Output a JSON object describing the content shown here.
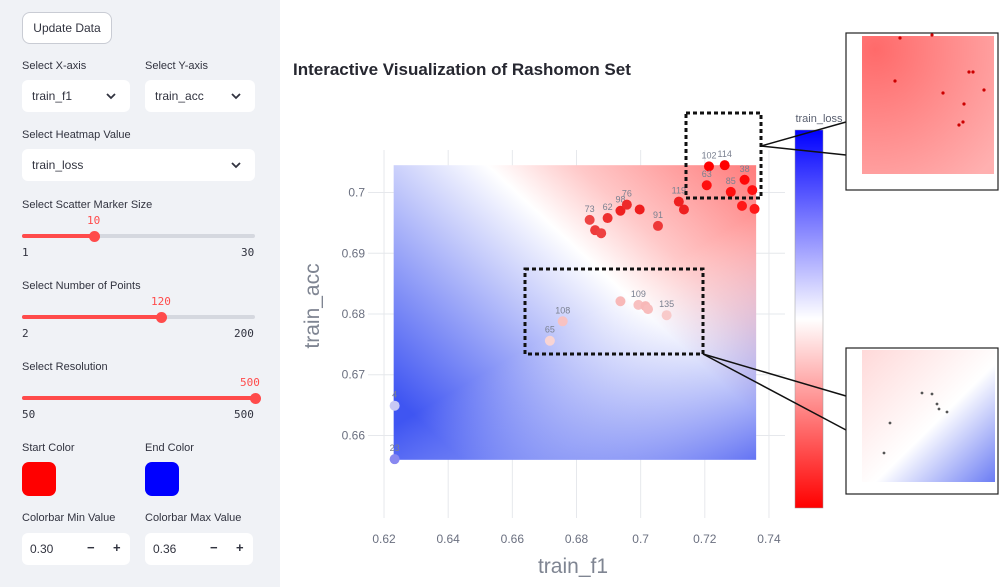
{
  "sidebar": {
    "update_button": "Update Data",
    "x_axis": {
      "label": "Select X-axis",
      "value": "train_f1"
    },
    "y_axis": {
      "label": "Select Y-axis",
      "value": "train_acc"
    },
    "heatmap": {
      "label": "Select Heatmap Value",
      "value": "train_loss"
    },
    "marker_size": {
      "label": "Select Scatter Marker Size",
      "value": 10,
      "min": 1,
      "max": 30
    },
    "num_points": {
      "label": "Select Number of Points",
      "value": 120,
      "min": 2,
      "max": 200
    },
    "resolution": {
      "label": "Select Resolution",
      "value": 500,
      "min": 50,
      "max": 500
    },
    "start_color": {
      "label": "Start Color",
      "value": "#ff0000"
    },
    "end_color": {
      "label": "End Color",
      "value": "#0000ff"
    },
    "cbar_min": {
      "label": "Colorbar Min Value",
      "value": "0.30"
    },
    "cbar_max": {
      "label": "Colorbar Max Value",
      "value": "0.36"
    },
    "minus": "−",
    "plus": "+"
  },
  "main": {
    "title": "Interactive Visualization of Rashomon Set"
  },
  "chart_data": {
    "type": "scatter",
    "title": "Interactive Visualization of Rashomon Set",
    "xlabel": "train_f1",
    "ylabel": "train_acc",
    "colorbar_label": "train_loss",
    "xlim": [
      0.615,
      0.745
    ],
    "ylim": [
      0.653,
      0.707
    ],
    "xticks": [
      0.62,
      0.64,
      0.66,
      0.68,
      0.7,
      0.72,
      0.74
    ],
    "yticks": [
      0.66,
      0.67,
      0.68,
      0.69,
      0.7
    ],
    "xtick_labels": [
      "0.62",
      "0.64",
      "0.66",
      "0.68",
      "0.7",
      "0.72",
      "0.74"
    ],
    "ytick_labels": [
      "0.66",
      "0.67",
      "0.68",
      "0.69",
      "0.7"
    ],
    "heatmap_extent": {
      "x": [
        0.623,
        0.736
      ],
      "y": [
        0.656,
        0.7045
      ]
    },
    "points": [
      {
        "label": "4",
        "x": 0.6233,
        "y": 0.6649,
        "color": "#c8c8f5"
      },
      {
        "label": "23",
        "x": 0.6233,
        "y": 0.6561,
        "color": "#8888f0"
      },
      {
        "label": "65",
        "x": 0.6717,
        "y": 0.6756,
        "color": "#f8d4d4"
      },
      {
        "label": "108",
        "x": 0.6757,
        "y": 0.6788,
        "color": "#f8c2c2"
      },
      {
        "label": "109",
        "x": 0.6993,
        "y": 0.6815,
        "color": "#f8c0c0"
      },
      {
        "label": "135",
        "x": 0.7081,
        "y": 0.6798,
        "color": "#f8caca"
      },
      {
        "label": "",
        "x": 0.6937,
        "y": 0.6821,
        "color": "#f8b8b8"
      },
      {
        "label": "",
        "x": 0.7015,
        "y": 0.6813,
        "color": "#f8b8b8"
      },
      {
        "label": "",
        "x": 0.7023,
        "y": 0.6808,
        "color": "#f8bcbc"
      },
      {
        "label": "73",
        "x": 0.6841,
        "y": 0.6955,
        "color": "#ee4444"
      },
      {
        "label": "",
        "x": 0.6858,
        "y": 0.6938,
        "color": "#ee3b3b"
      },
      {
        "label": "",
        "x": 0.6877,
        "y": 0.6933,
        "color": "#ee4040"
      },
      {
        "label": "62",
        "x": 0.6897,
        "y": 0.6958,
        "color": "#ee3030"
      },
      {
        "label": "98",
        "x": 0.6937,
        "y": 0.697,
        "color": "#ee2020"
      },
      {
        "label": "76",
        "x": 0.6957,
        "y": 0.698,
        "color": "#ee2a2a"
      },
      {
        "label": "",
        "x": 0.6997,
        "y": 0.6972,
        "color": "#ee1e1e"
      },
      {
        "label": "91",
        "x": 0.7054,
        "y": 0.6945,
        "color": "#ee3838"
      },
      {
        "label": "119",
        "x": 0.7119,
        "y": 0.6985,
        "color": "#ee2020"
      },
      {
        "label": "",
        "x": 0.7135,
        "y": 0.6972,
        "color": "#ee2020"
      },
      {
        "label": "102",
        "x": 0.7213,
        "y": 0.7043,
        "color": "#ff0000"
      },
      {
        "label": "114",
        "x": 0.7262,
        "y": 0.7045,
        "color": "#ff0000"
      },
      {
        "label": "63",
        "x": 0.7206,
        "y": 0.7012,
        "color": "#ff1010"
      },
      {
        "label": "85",
        "x": 0.7281,
        "y": 0.7001,
        "color": "#ff1010"
      },
      {
        "label": "38",
        "x": 0.7324,
        "y": 0.7021,
        "color": "#ff0808"
      },
      {
        "label": "",
        "x": 0.7348,
        "y": 0.7004,
        "color": "#ff1010"
      },
      {
        "label": "",
        "x": 0.7355,
        "y": 0.6973,
        "color": "#ff1818"
      },
      {
        "label": "",
        "x": 0.7316,
        "y": 0.6978,
        "color": "#ff1818"
      }
    ]
  }
}
